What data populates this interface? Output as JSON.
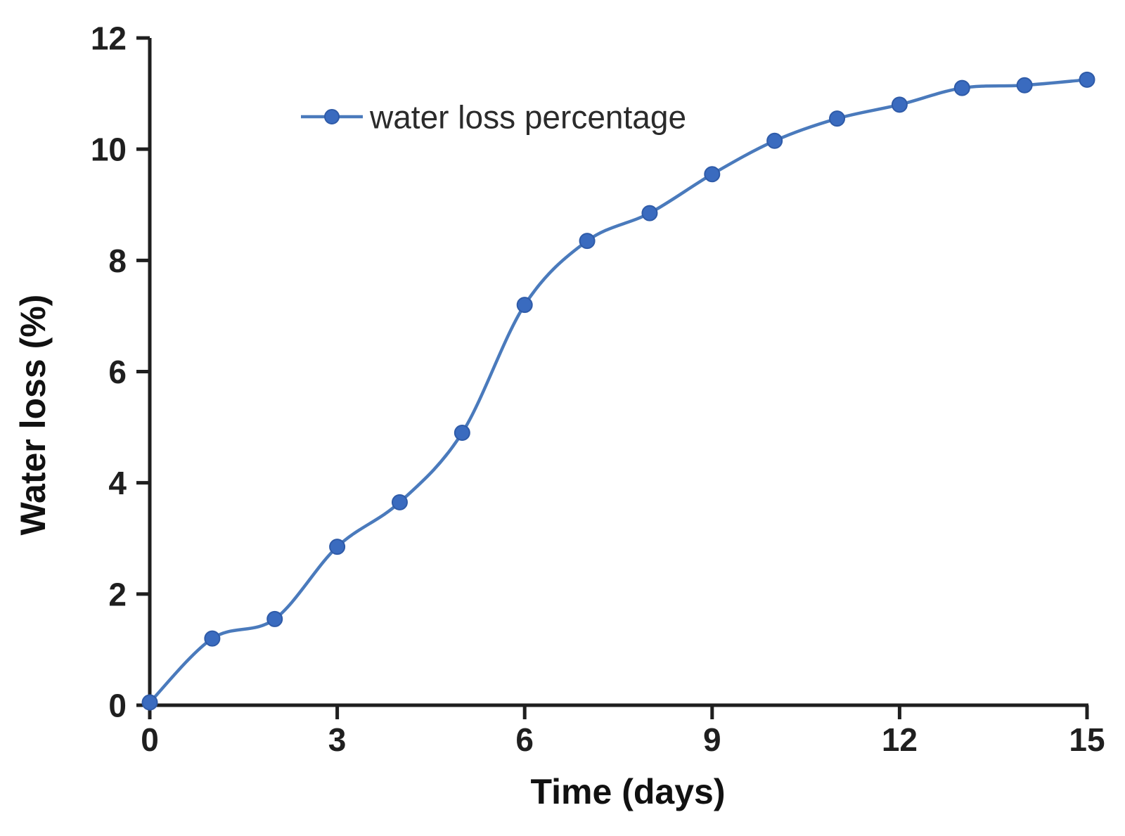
{
  "figure": {
    "background": "#ffffff"
  },
  "chart_data": {
    "type": "line",
    "title": "",
    "xlabel": "Time (days)",
    "ylabel": "Water loss (%)",
    "legend": {
      "label": "water loss percentage",
      "position": "top-left-inside"
    },
    "x": [
      0,
      1,
      2,
      3,
      4,
      5,
      6,
      7,
      8,
      9,
      10,
      11,
      12,
      13,
      14,
      15
    ],
    "series": [
      {
        "name": "water loss percentage",
        "values": [
          0.05,
          1.2,
          1.55,
          2.85,
          3.65,
          4.9,
          7.2,
          8.35,
          8.85,
          9.55,
          10.15,
          10.55,
          10.8,
          11.1,
          11.15,
          11.25
        ]
      }
    ],
    "xlim": [
      0,
      15
    ],
    "ylim": [
      0,
      12
    ],
    "xticks": [
      0,
      3,
      6,
      9,
      12,
      15
    ],
    "yticks": [
      0,
      2,
      4,
      6,
      8,
      10,
      12
    ],
    "grid": false,
    "line_style": "smooth",
    "marker": "circle",
    "colors": {
      "line": "#4a7abc",
      "marker_fill": "#3a6bbf",
      "marker_stroke": "#2f5ba8",
      "axis": "#1f1f1f",
      "tick_text": "#1f1f1f",
      "axis_title_text": "#111111",
      "legend_text": "#2b2b2b"
    }
  }
}
